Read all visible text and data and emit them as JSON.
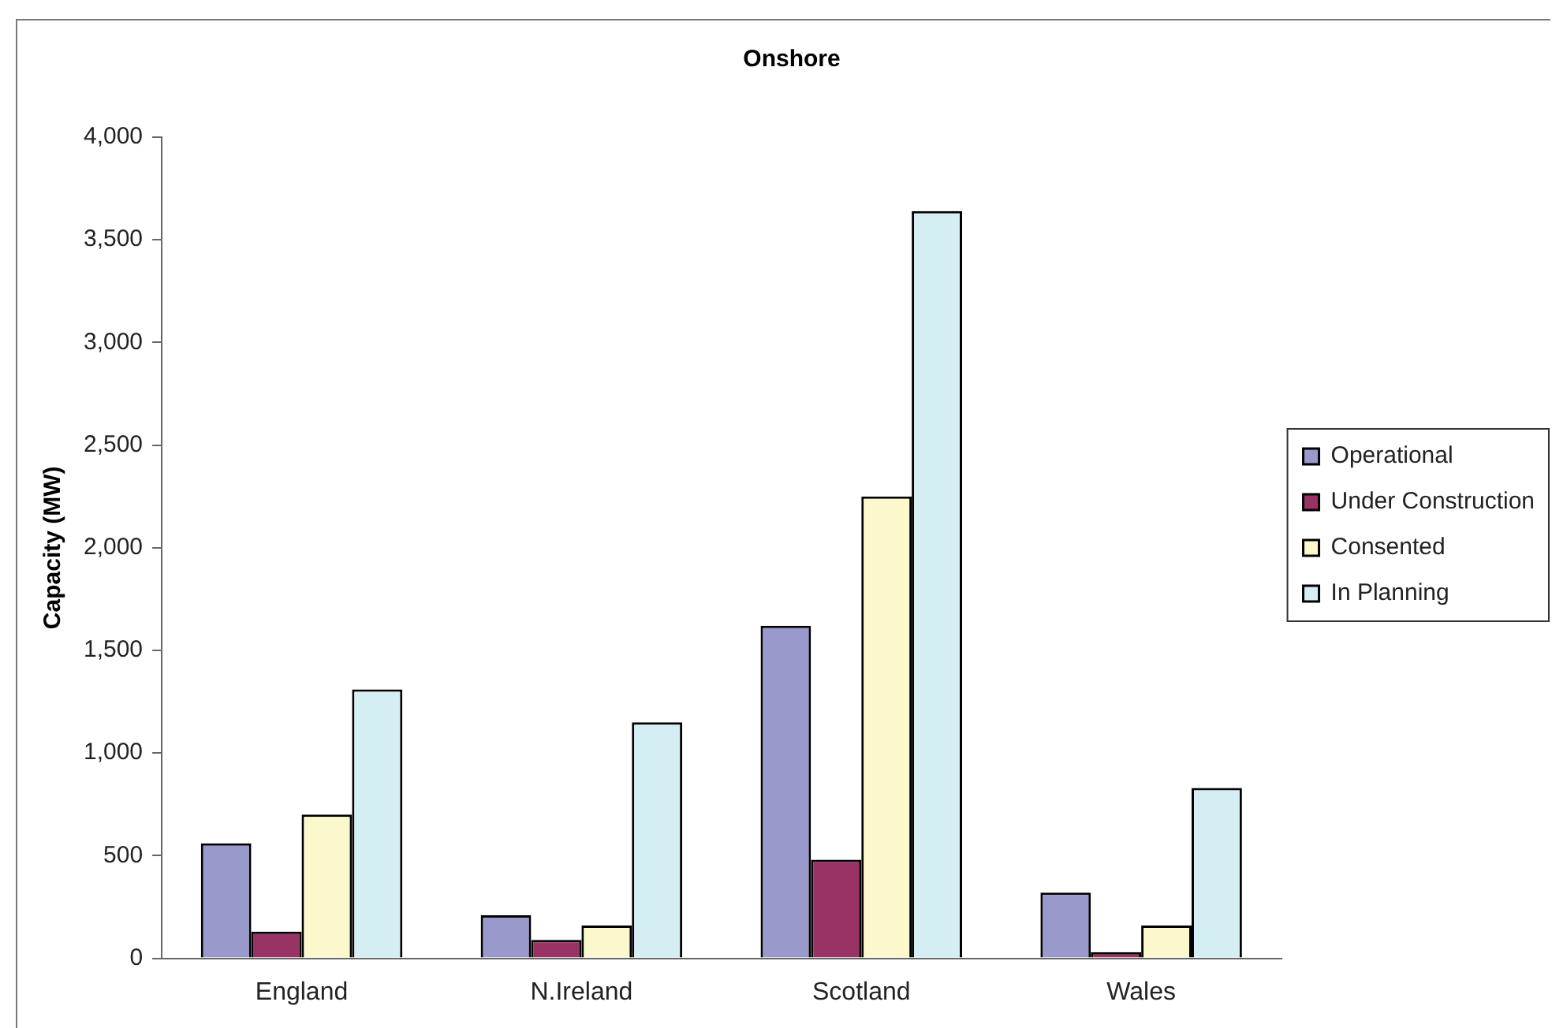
{
  "chart_data": {
    "type": "bar",
    "title": "Onshore",
    "ylabel": "Capacity (MW)",
    "categories": [
      "England",
      "N.Ireland",
      "Scotland",
      "Wales"
    ],
    "series": [
      {
        "name": "Operational",
        "color": "#9999cc",
        "values": [
          560,
          210,
          1620,
          320
        ]
      },
      {
        "name": "Under Construction",
        "color": "#993366",
        "values": [
          130,
          90,
          480,
          30
        ]
      },
      {
        "name": "Consented",
        "color": "#fbf8cc",
        "values": [
          700,
          160,
          2250,
          160
        ]
      },
      {
        "name": "In Planning",
        "color": "#d4eef4",
        "values": [
          1310,
          1150,
          3640,
          830
        ]
      }
    ],
    "ylim": [
      0,
      4000
    ],
    "yticks": [
      0,
      500,
      {
        "value": 1000,
        "label": "1,000"
      },
      {
        "value": 1500,
        "label": "1,500"
      },
      {
        "value": 2000,
        "label": "2,000"
      },
      {
        "value": 2500,
        "label": "2,500"
      },
      {
        "value": 3000,
        "label": "3,000"
      },
      {
        "value": 3500,
        "label": "3,500"
      },
      {
        "value": 4000,
        "label": "4,000"
      }
    ],
    "grid": false,
    "legend": "right"
  }
}
